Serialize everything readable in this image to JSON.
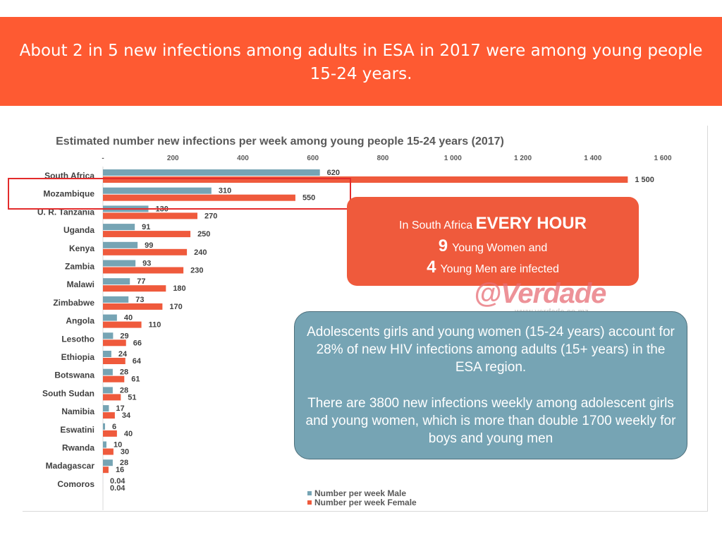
{
  "header": {
    "title": "About 2 in 5 new infections among adults in ESA in 2017 were among young people 15-24 years."
  },
  "callout_red": {
    "prefix": "In South Africa",
    "emphasis": "EVERY HOUR",
    "women_count": "9",
    "women_text": "Young Women and",
    "men_count": "4",
    "men_text": "Young Men are infected"
  },
  "callout_blue": {
    "paragraph_1": "Adolescents girls and young women (15-24 years) account for 28% of new HIV infections among adults (15+ years)  in the ESA region.",
    "paragraph_2": "There are 3800 new infections weekly among adolescent girls and young women, which is more than double 1700 weekly for boys and young men"
  },
  "watermark": {
    "brand": "@Verdade",
    "url": "www.verdade.co.mz"
  },
  "colors": {
    "banner": "#fe5a32",
    "male": "#76a4b4",
    "female": "#ef5a3c",
    "highlight": "#e32c2c"
  },
  "chart_data": {
    "type": "bar",
    "orientation": "horizontal",
    "title": "Estimated number new infections per week among young people 15-24 years (2017)",
    "xlim": [
      0,
      1600
    ],
    "ticks": [
      {
        "value": 0,
        "label": "-"
      },
      {
        "value": 200,
        "label": "200"
      },
      {
        "value": 400,
        "label": "400"
      },
      {
        "value": 600,
        "label": "600"
      },
      {
        "value": 800,
        "label": "800"
      },
      {
        "value": 1000,
        "label": "1 000"
      },
      {
        "value": 1200,
        "label": "1 200"
      },
      {
        "value": 1400,
        "label": "1 400"
      },
      {
        "value": 1600,
        "label": "1 600"
      }
    ],
    "categories": [
      "South Africa",
      "Mozambique",
      "U. R. Tanzania",
      "Uganda",
      "Kenya",
      "Zambia",
      "Malawi",
      "Zimbabwe",
      "Angola",
      "Lesotho",
      "Ethiopia",
      "Botswana",
      "South Sudan",
      "Namibia",
      "Eswatini",
      "Rwanda",
      "Madagascar",
      "Comoros"
    ],
    "series": [
      {
        "name": "Number per week Male",
        "values": [
          620,
          310,
          130,
          91,
          99,
          93,
          77,
          73,
          40,
          29,
          24,
          28,
          28,
          17,
          6,
          10,
          28,
          0.04
        ],
        "labels": [
          "620",
          "310",
          "130",
          "91",
          "99",
          "93",
          "77",
          "73",
          "40",
          "29",
          "24",
          "28",
          "28",
          "17",
          "6",
          "10",
          "28",
          "0.04"
        ]
      },
      {
        "name": "Number per week Female",
        "values": [
          1500,
          550,
          270,
          250,
          240,
          230,
          180,
          170,
          110,
          66,
          64,
          61,
          51,
          34,
          40,
          30,
          16,
          0.04
        ],
        "labels": [
          "1 500",
          "550",
          "270",
          "250",
          "240",
          "230",
          "180",
          "170",
          "110",
          "66",
          "64",
          "61",
          "51",
          "34",
          "40",
          "30",
          "16",
          "0.04"
        ]
      }
    ],
    "legend": "bottom-center",
    "highlighted_category": "Mozambique"
  }
}
